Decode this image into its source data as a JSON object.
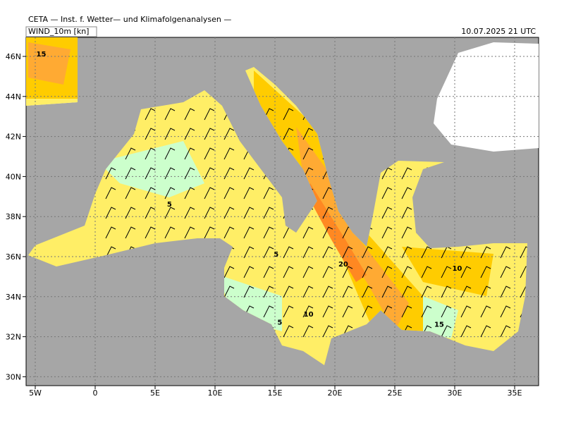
{
  "header": "CETA — Inst. f. Wetter— und Klimafolgenanalysen —",
  "title": "WIND_10m [kn]",
  "valid_time": "10.07.2025 21 UTC",
  "lat_ticks": [
    {
      "value": 30,
      "label": "30N"
    },
    {
      "value": 32,
      "label": "32N"
    },
    {
      "value": 34,
      "label": "34N"
    },
    {
      "value": 36,
      "label": "36N"
    },
    {
      "value": 38,
      "label": "38N"
    },
    {
      "value": 40,
      "label": "40N"
    },
    {
      "value": 42,
      "label": "42N"
    },
    {
      "value": 44,
      "label": "44N"
    },
    {
      "value": 46,
      "label": "46N"
    }
  ],
  "lon_ticks": [
    {
      "value": -5,
      "label": "5W"
    },
    0,
    {
      "value": 5,
      "label": "5E"
    },
    {
      "value": 10,
      "label": "10E"
    },
    {
      "value": 15,
      "label": "15E"
    },
    {
      "value": 20,
      "label": "20E"
    },
    {
      "value": 25,
      "label": "25E"
    },
    {
      "value": 30,
      "label": "30E"
    },
    {
      "value": 35,
      "label": "35E"
    }
  ],
  "contour_labels": [
    {
      "value": 15,
      "lon": -4.5,
      "lat": 46
    },
    {
      "value": 5,
      "lon": 6.2,
      "lat": 38.5
    },
    {
      "value": 5,
      "lon": 15.1,
      "lat": 36
    },
    {
      "value": 20,
      "lon": 20.7,
      "lat": 35.5
    },
    {
      "value": 10,
      "lon": 30.2,
      "lat": 35.3
    },
    {
      "value": 10,
      "lon": 17.8,
      "lat": 33
    },
    {
      "value": 5,
      "lon": 15.4,
      "lat": 32.6
    },
    {
      "value": 15,
      "lon": 28.7,
      "lat": 32.5
    }
  ]
}
